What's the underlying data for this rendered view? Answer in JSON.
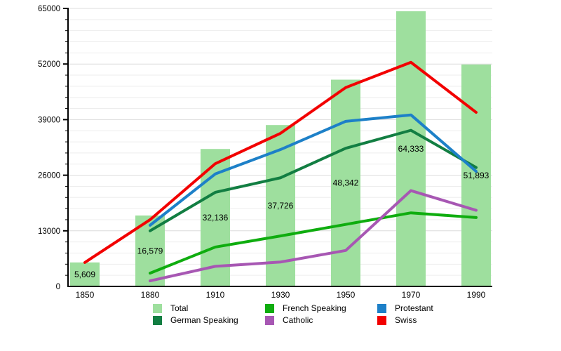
{
  "chart_data": {
    "type": "bar+line",
    "title": "",
    "xlabel": "",
    "ylabel": "",
    "categories": [
      "1850",
      "1880",
      "1910",
      "1930",
      "1950",
      "1970",
      "1990"
    ],
    "ylim": [
      0,
      65000
    ],
    "y_ticks": [
      0,
      13000,
      26000,
      39000,
      52000,
      65000
    ],
    "y_minor_step": 2600,
    "grid": true,
    "legend_position": "bottom",
    "bar_series": {
      "name": "Total",
      "color": "#9edf9e",
      "values": [
        5609,
        16579,
        32136,
        37726,
        48342,
        64333,
        51893
      ],
      "labels": [
        "5,609",
        "16,579",
        "32,136",
        "37,726",
        "48,342",
        "64,333",
        "51,893"
      ]
    },
    "line_series": [
      {
        "name": "German Speaking",
        "color": "#127e42",
        "values": [
          null,
          13000,
          22000,
          25400,
          32300,
          36500,
          27800
        ]
      },
      {
        "name": "French Speaking",
        "color": "#0fad0f",
        "values": [
          null,
          3100,
          9200,
          11800,
          14500,
          17200,
          16100
        ]
      },
      {
        "name": "Catholic",
        "color": "#a757b3",
        "values": [
          null,
          1300,
          4700,
          5700,
          8400,
          22400,
          17800
        ]
      },
      {
        "name": "Protestant",
        "color": "#1d80c8",
        "values": [
          null,
          14300,
          26300,
          32000,
          38600,
          40100,
          26900
        ]
      },
      {
        "name": "Swiss",
        "color": "#f20000",
        "values": [
          5600,
          15600,
          28700,
          35800,
          46500,
          52400,
          40700
        ]
      }
    ]
  },
  "legend": {
    "items": [
      {
        "label": "Total",
        "color": "#9edf9e"
      },
      {
        "label": "French Speaking",
        "color": "#0fad0f"
      },
      {
        "label": "Protestant",
        "color": "#1d80c8"
      },
      {
        "label": "German Speaking",
        "color": "#127e42"
      },
      {
        "label": "Catholic",
        "color": "#a757b3"
      },
      {
        "label": "Swiss",
        "color": "#f20000"
      }
    ]
  },
  "colors": {
    "axis": "#000000",
    "grid_minor": "#ededed",
    "grid_major": "#dcdcdc",
    "text": "#000000"
  }
}
